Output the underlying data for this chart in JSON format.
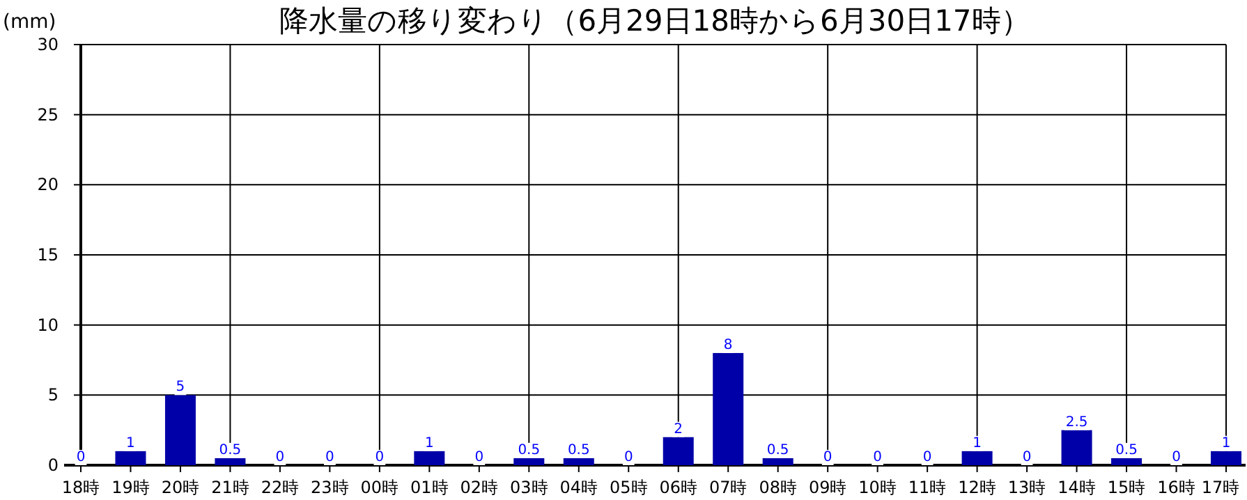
{
  "chart_data": {
    "type": "bar",
    "title": "降水量の移り変わり（6月29日18時から6月30日17時）",
    "ylabel": "(mm)",
    "categories": [
      "18時",
      "19時",
      "20時",
      "21時",
      "22時",
      "23時",
      "00時",
      "01時",
      "02時",
      "03時",
      "04時",
      "05時",
      "06時",
      "07時",
      "08時",
      "09時",
      "10時",
      "11時",
      "12時",
      "13時",
      "14時",
      "15時",
      "16時",
      "17時"
    ],
    "values": [
      0,
      1,
      5,
      0.5,
      0,
      0,
      0,
      1,
      0,
      0.5,
      0.5,
      0,
      2,
      8,
      0.5,
      0,
      0,
      0,
      1,
      0,
      2.5,
      0.5,
      0,
      1
    ],
    "color": "#0000a8",
    "ylim": [
      0,
      30
    ],
    "yticks": [
      0,
      5,
      10,
      15,
      20,
      25,
      30
    ],
    "grid": true,
    "data_labels": true
  }
}
